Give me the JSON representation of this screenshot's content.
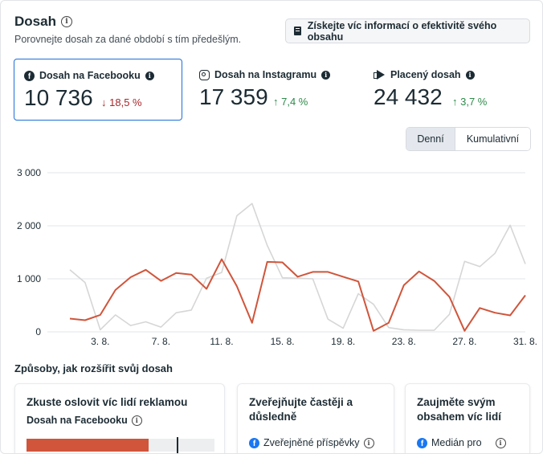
{
  "header": {
    "title": "Dosah",
    "subtitle": "Porovnejte dosah za dané období s tím předešlým.",
    "insights_button": "Získejte víc informací o efektivitě svého obsahu"
  },
  "metrics": [
    {
      "label": "Dosah na Facebooku",
      "value": "10 736",
      "change": "18,5 %",
      "direction": "down",
      "icon": "facebook-icon"
    },
    {
      "label": "Dosah na Instagramu",
      "value": "17 359",
      "change": "7,4 %",
      "direction": "up",
      "icon": "instagram-icon"
    },
    {
      "label": "Placený dosah",
      "value": "24 432",
      "change": "3,7 %",
      "direction": "up",
      "icon": "megaphone-icon"
    }
  ],
  "toggle": {
    "daily": "Denní",
    "cumulative": "Kumulativní",
    "selected": "daily"
  },
  "colors": {
    "facebook_series": "#d0553b",
    "previous_series": "#d6d6d6",
    "accent": "#1e6fd9",
    "down": "#a8262b",
    "up": "#2e8a4a"
  },
  "chart_data": {
    "type": "line",
    "x": [
      "1. 8.",
      "2. 8.",
      "3. 8.",
      "4. 8.",
      "5. 8.",
      "6. 8.",
      "7. 8.",
      "8. 8.",
      "9. 8.",
      "10. 8.",
      "11. 8.",
      "12. 8.",
      "13. 8.",
      "14. 8.",
      "15. 8.",
      "16. 8.",
      "17. 8.",
      "18. 8.",
      "19. 8.",
      "20. 8.",
      "21. 8.",
      "22. 8.",
      "23. 8.",
      "24. 8.",
      "25. 8.",
      "26. 8.",
      "27. 8.",
      "28. 8.",
      "29. 8.",
      "30. 8.",
      "31. 8."
    ],
    "x_tick_labels": [
      "3. 8.",
      "7. 8.",
      "11. 8.",
      "15. 8.",
      "19. 8.",
      "23. 8.",
      "27. 8.",
      "31. 8."
    ],
    "y_tick_labels": [
      "0",
      "1 000",
      "2 000",
      "3 000"
    ],
    "ylim": [
      0,
      3000
    ],
    "grid": true,
    "series": [
      {
        "values": [
          250,
          220,
          320,
          790,
          1030,
          1170,
          960,
          1110,
          1080,
          810,
          1370,
          860,
          170,
          1320,
          1310,
          1040,
          1130,
          1130,
          1040,
          950,
          20,
          170,
          880,
          1140,
          960,
          660,
          20,
          450,
          360,
          310,
          690
        ]
      },
      {
        "values": [
          1170,
          930,
          40,
          320,
          120,
          190,
          90,
          360,
          410,
          1010,
          1120,
          2190,
          2420,
          1630,
          1020,
          1010,
          1000,
          240,
          70,
          720,
          520,
          80,
          40,
          30,
          30,
          330,
          1330,
          1230,
          1480,
          2010,
          1280
        ]
      }
    ]
  },
  "ways_section": {
    "title": "Způsoby, jak rozšířit svůj dosah",
    "cards": [
      {
        "title": "Zkuste oslovit víc lidí reklamou",
        "sub": "Dosah na Facebooku",
        "progress": 0.65,
        "marker": 0.8
      },
      {
        "title_line1": "Zveřejňujte častěji a",
        "title_line2": "důsledně",
        "sub": "Zveřejněné příspěvky"
      },
      {
        "title_line1": "Zaujměte svým",
        "title_line2": "obsahem víc lidí",
        "sub": "Medián pro"
      }
    ]
  }
}
